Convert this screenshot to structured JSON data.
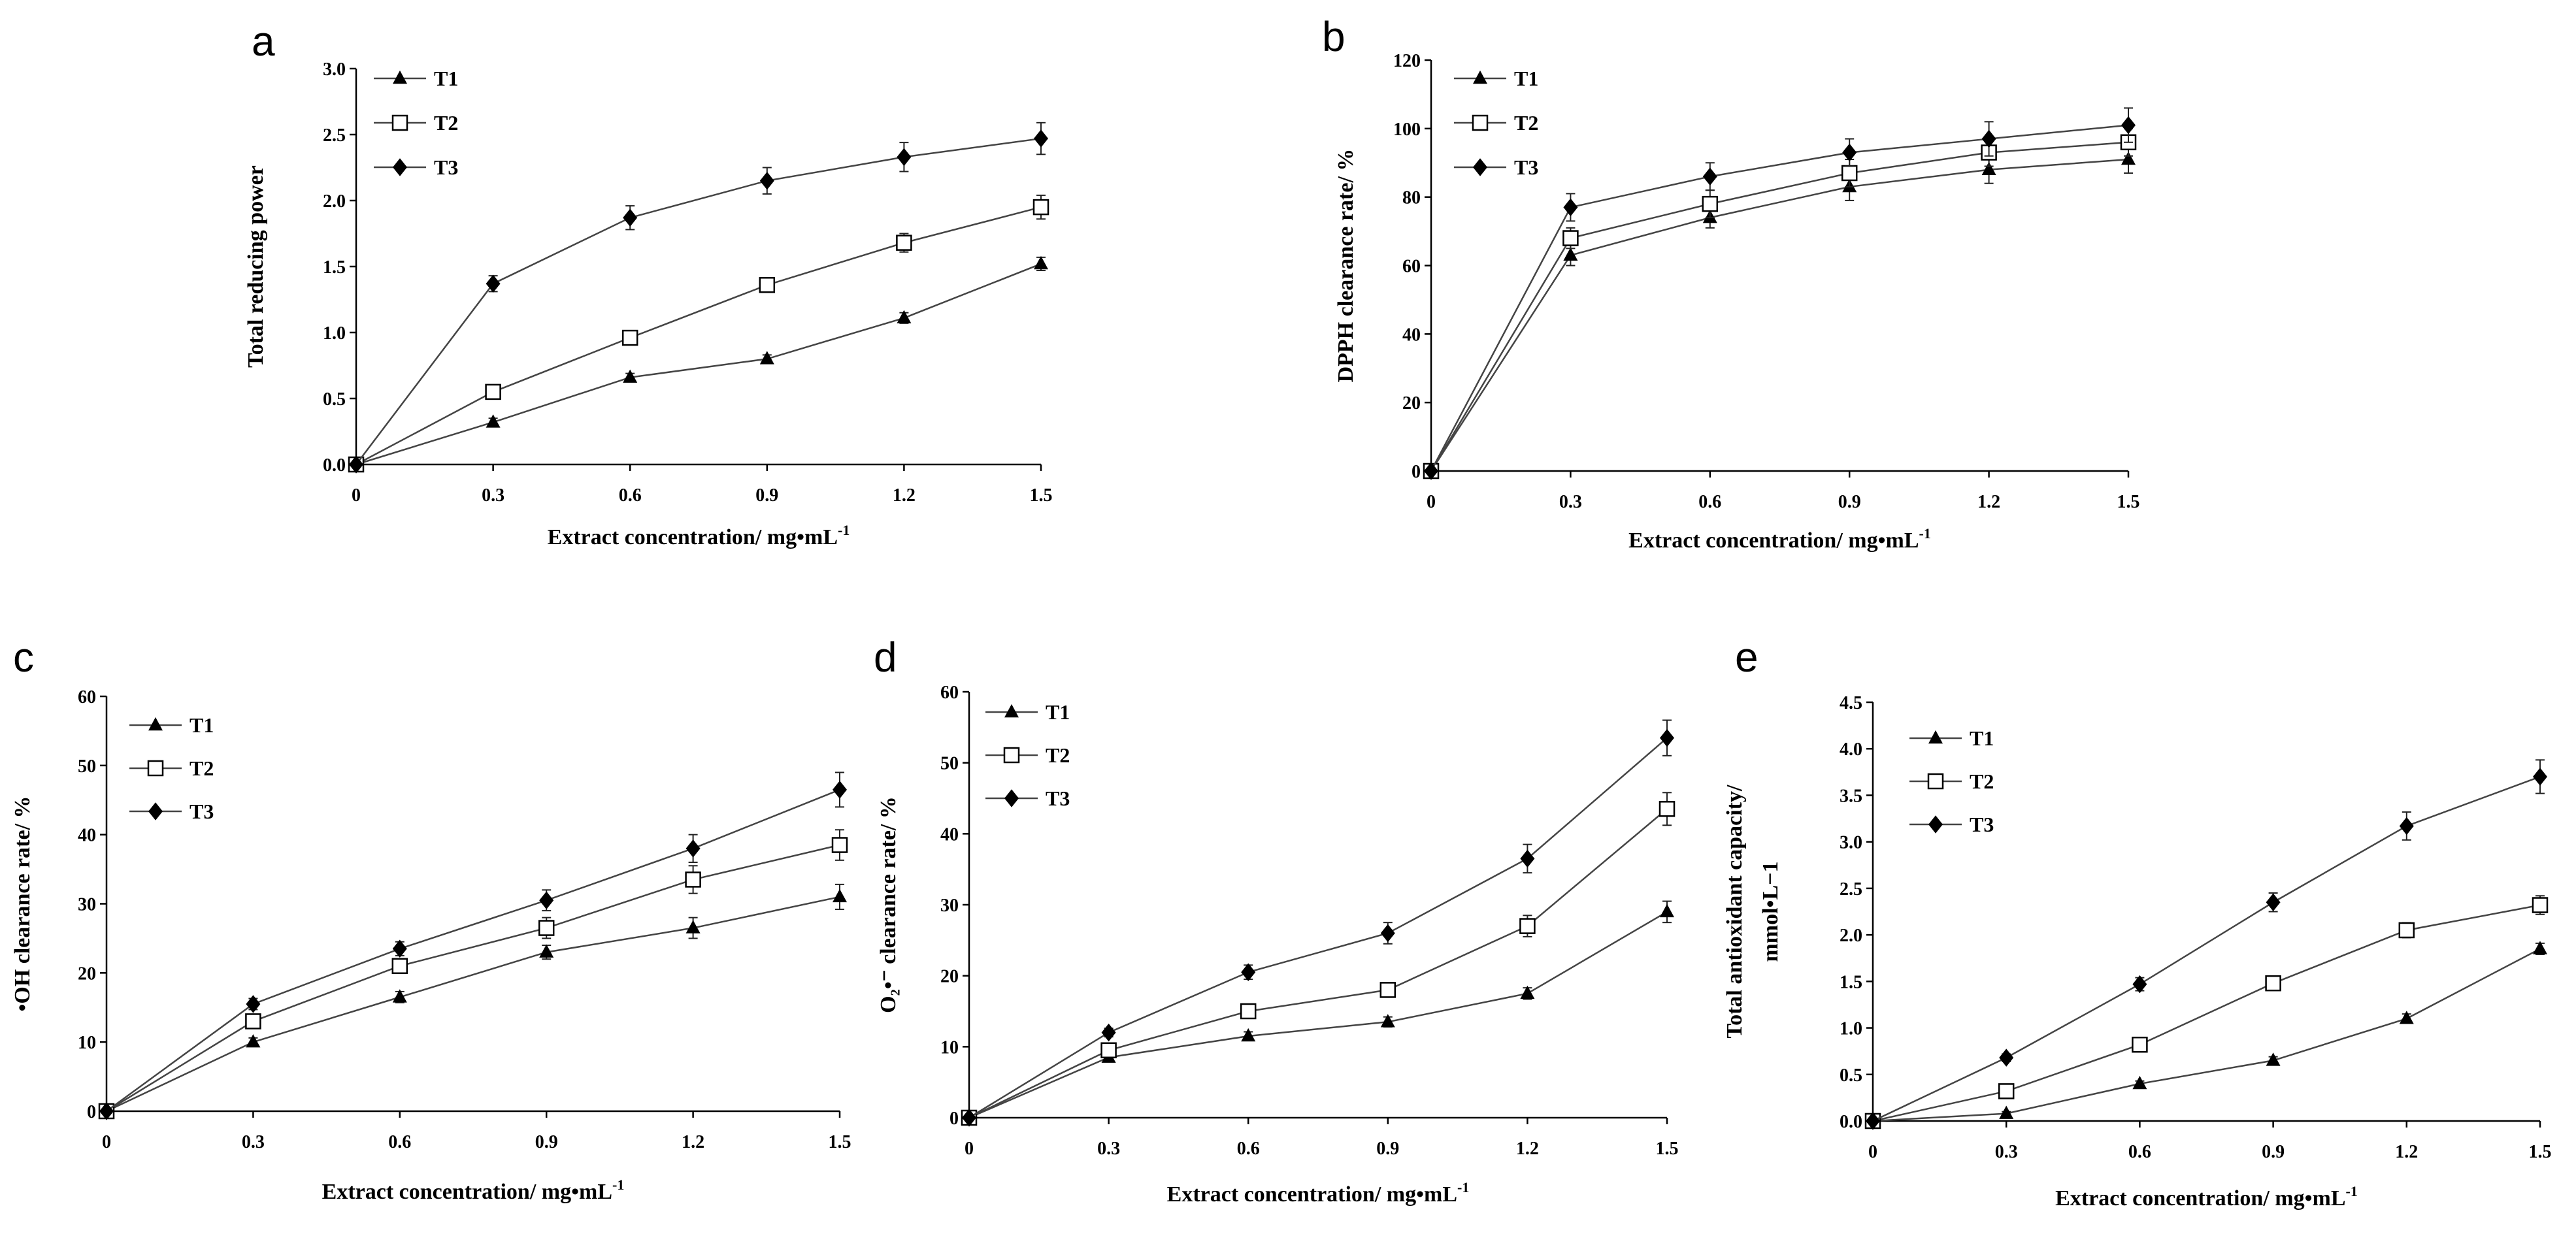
{
  "figure": {
    "panel_letters": [
      "a",
      "b",
      "c",
      "d",
      "e"
    ]
  },
  "chart_data": [
    {
      "type": "line",
      "panel": "a",
      "xlabel": "Extract concentration/  mg•mL",
      "xlabel_sup": "-1",
      "ylabel": "Total reducing power",
      "x": [
        0,
        0.3,
        0.6,
        0.9,
        1.2,
        1.5
      ],
      "x_tick_labels": [
        "0",
        "0.3",
        "0.6",
        "0.9",
        "1.2",
        "1.5"
      ],
      "ylim": [
        0,
        3.0
      ],
      "y_ticks": [
        0,
        0.5,
        1.0,
        1.5,
        2.0,
        2.5,
        3.0
      ],
      "y_tick_labels": [
        "0.0",
        "0.5",
        "1.0",
        "1.5",
        "2.0",
        "2.5",
        "3.0"
      ],
      "legend_position": "top-left",
      "series": [
        {
          "name": "T1",
          "marker": "triangle",
          "values": [
            0,
            0.32,
            0.66,
            0.8,
            1.11,
            1.52
          ],
          "errors": [
            0,
            0.03,
            0.03,
            0.03,
            0.04,
            0.05
          ]
        },
        {
          "name": "T2",
          "marker": "square",
          "values": [
            0,
            0.55,
            0.96,
            1.36,
            1.68,
            1.95
          ],
          "errors": [
            0,
            0.03,
            0.04,
            0.05,
            0.07,
            0.09
          ]
        },
        {
          "name": "T3",
          "marker": "diamond",
          "values": [
            0,
            1.37,
            1.87,
            2.15,
            2.33,
            2.47
          ],
          "errors": [
            0,
            0.06,
            0.09,
            0.1,
            0.11,
            0.12
          ]
        }
      ]
    },
    {
      "type": "line",
      "panel": "b",
      "xlabel": "Extract concentration/  mg•mL",
      "xlabel_sup": "-1",
      "ylabel": "DPPH clearance rate/ %",
      "x": [
        0,
        0.3,
        0.6,
        0.9,
        1.2,
        1.5
      ],
      "x_tick_labels": [
        "0",
        "0.3",
        "0.6",
        "0.9",
        "1.2",
        "1.5"
      ],
      "ylim": [
        0,
        120
      ],
      "y_ticks": [
        0,
        20,
        40,
        60,
        80,
        100,
        120
      ],
      "y_tick_labels": [
        "0",
        "20",
        "40",
        "60",
        "80",
        "100",
        "120"
      ],
      "legend_position": "top-left",
      "series": [
        {
          "name": "T1",
          "marker": "triangle",
          "values": [
            0,
            63,
            74,
            83,
            88,
            91
          ],
          "errors": [
            0,
            3,
            3,
            4,
            4,
            4
          ]
        },
        {
          "name": "T2",
          "marker": "square",
          "values": [
            0,
            68,
            78,
            87,
            93,
            96
          ],
          "errors": [
            0,
            3,
            4,
            4,
            4,
            4
          ]
        },
        {
          "name": "T3",
          "marker": "diamond",
          "values": [
            0,
            77,
            86,
            93,
            97,
            101
          ],
          "errors": [
            0,
            4,
            4,
            4,
            5,
            5
          ]
        }
      ]
    },
    {
      "type": "line",
      "panel": "c",
      "xlabel": "Extract concentration/  mg•mL",
      "xlabel_sup": "-1",
      "ylabel": "•OH  clearance rate/ %",
      "x": [
        0,
        0.3,
        0.6,
        0.9,
        1.2,
        1.5
      ],
      "x_tick_labels": [
        "0",
        "0.3",
        "0.6",
        "0.9",
        "1.2",
        "1.5"
      ],
      "ylim": [
        0,
        60
      ],
      "y_ticks": [
        0,
        10,
        20,
        30,
        40,
        50,
        60
      ],
      "y_tick_labels": [
        "0",
        "10",
        "20",
        "30",
        "40",
        "50",
        "60"
      ],
      "legend_position": "top-left",
      "series": [
        {
          "name": "T1",
          "marker": "triangle",
          "values": [
            0,
            10,
            16.5,
            23,
            26.5,
            31
          ],
          "errors": [
            0,
            0.6,
            0.8,
            1.0,
            1.5,
            1.8
          ]
        },
        {
          "name": "T2",
          "marker": "square",
          "values": [
            0,
            13,
            21,
            26.5,
            33.5,
            38.5
          ],
          "errors": [
            0,
            0.8,
            1.0,
            1.5,
            2.0,
            2.2
          ]
        },
        {
          "name": "T3",
          "marker": "diamond",
          "values": [
            0,
            15.5,
            23.5,
            30.5,
            38,
            46.5
          ],
          "errors": [
            0,
            0.8,
            1.0,
            1.5,
            2.0,
            2.5
          ]
        }
      ]
    },
    {
      "type": "line",
      "panel": "d",
      "xlabel": "Extract concentration/  mg•mL",
      "xlabel_sup": "-1",
      "ylabel": "O₂•⁻ clearance rate/ %",
      "x": [
        0,
        0.3,
        0.6,
        0.9,
        1.2,
        1.5
      ],
      "x_tick_labels": [
        "0",
        "0.3",
        "0.6",
        "0.9",
        "1.2",
        "1.5"
      ],
      "ylim": [
        0,
        60
      ],
      "y_ticks": [
        0,
        10,
        20,
        30,
        40,
        50,
        60
      ],
      "y_tick_labels": [
        "0",
        "10",
        "20",
        "30",
        "40",
        "50",
        "60"
      ],
      "legend_position": "top-left",
      "series": [
        {
          "name": "T1",
          "marker": "triangle",
          "values": [
            0,
            8.5,
            11.5,
            13.5,
            17.5,
            29
          ],
          "errors": [
            0,
            0.5,
            0.6,
            0.7,
            0.8,
            1.5
          ]
        },
        {
          "name": "T2",
          "marker": "square",
          "values": [
            0,
            9.5,
            15,
            18,
            27,
            43.5
          ],
          "errors": [
            0,
            0.6,
            0.8,
            1.0,
            1.5,
            2.3
          ]
        },
        {
          "name": "T3",
          "marker": "diamond",
          "values": [
            0,
            12,
            20.5,
            26,
            36.5,
            53.5
          ],
          "errors": [
            0,
            0.6,
            1.0,
            1.5,
            2.0,
            2.5
          ]
        }
      ]
    },
    {
      "type": "line",
      "panel": "e",
      "xlabel": "Extract concentration/  mg•mL",
      "xlabel_sup": "-1",
      "ylabel": "Total antioxidant capacity/",
      "ylabel2": "mmol•L−1",
      "x": [
        0,
        0.3,
        0.6,
        0.9,
        1.2,
        1.5
      ],
      "x_tick_labels": [
        "0",
        "0.3",
        "0.6",
        "0.9",
        "1.2",
        "1.5"
      ],
      "ylim": [
        0,
        4.5
      ],
      "y_ticks": [
        0,
        0.5,
        1.0,
        1.5,
        2.0,
        2.5,
        3.0,
        3.5,
        4.0,
        4.5
      ],
      "y_tick_labels": [
        "0.0",
        "0.5",
        "1.0",
        "1.5",
        "2.0",
        "2.5",
        "3.0",
        "3.5",
        "4.0",
        "4.5"
      ],
      "legend_position": "top-left",
      "series": [
        {
          "name": "T1",
          "marker": "triangle",
          "values": [
            0,
            0.08,
            0.4,
            0.65,
            1.1,
            1.85
          ],
          "errors": [
            0,
            0.02,
            0.03,
            0.04,
            0.05,
            0.06
          ]
        },
        {
          "name": "T2",
          "marker": "square",
          "values": [
            0,
            0.32,
            0.82,
            1.48,
            2.05,
            2.32
          ],
          "errors": [
            0,
            0.03,
            0.05,
            0.07,
            0.08,
            0.1
          ]
        },
        {
          "name": "T3",
          "marker": "diamond",
          "values": [
            0,
            0.68,
            1.47,
            2.35,
            3.17,
            3.7
          ],
          "errors": [
            0,
            0.04,
            0.07,
            0.1,
            0.15,
            0.18
          ]
        }
      ]
    }
  ]
}
